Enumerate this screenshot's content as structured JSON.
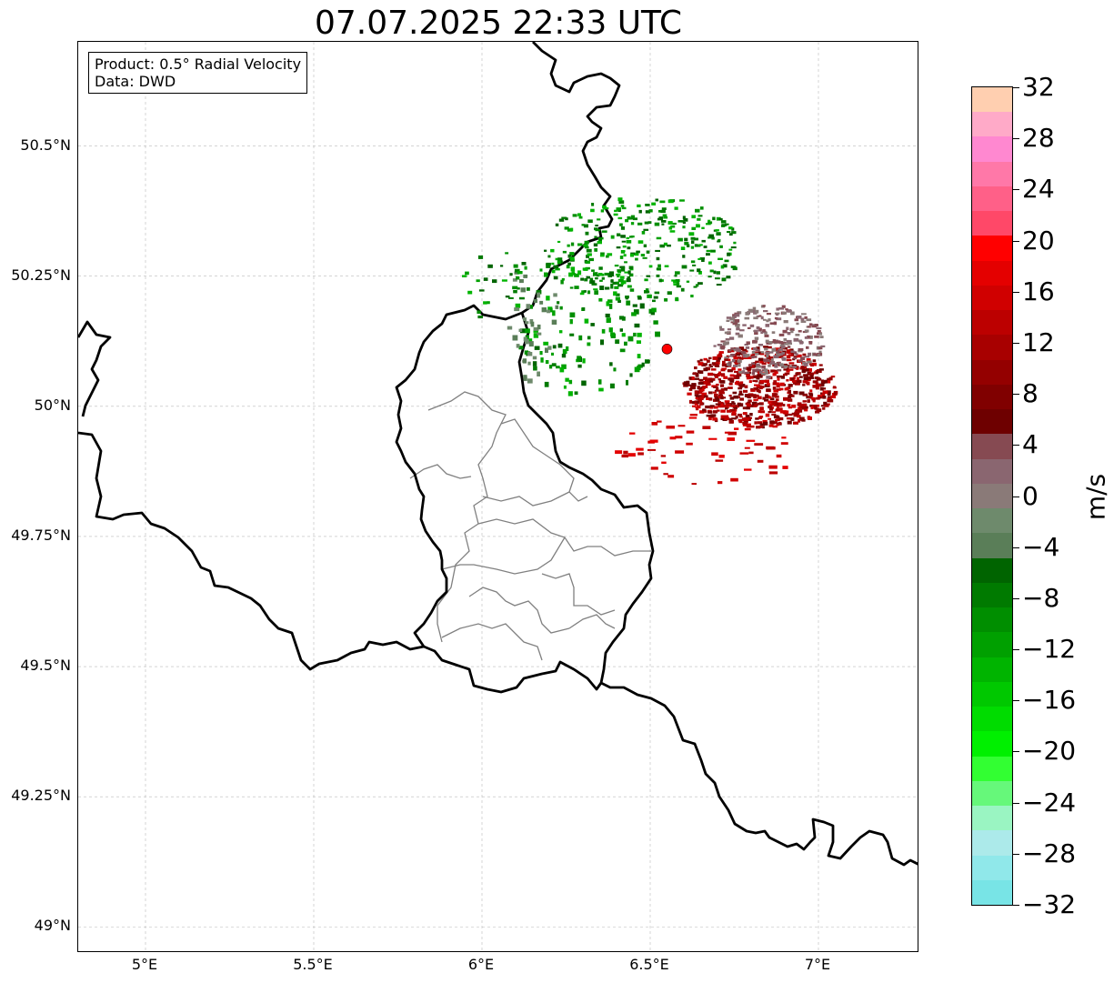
{
  "title": "07.07.2025 22:33 UTC",
  "info": {
    "product": "Product: 0.5° Radial Velocity",
    "data": "Data: DWD"
  },
  "map": {
    "lon_range": [
      4.8,
      7.3
    ],
    "lat_range": [
      48.95,
      50.7
    ],
    "x_ticks": [
      "5°E",
      "5.5°E",
      "6°E",
      "6.5°E",
      "7°E"
    ],
    "y_ticks": [
      "50.5°N",
      "50.25°N",
      "50°N",
      "49.75°N",
      "49.5°N",
      "49.25°N",
      "49°N"
    ],
    "radar_site": {
      "lon": 6.55,
      "lat": 50.11,
      "color": "#ff0000"
    },
    "border_color": "#000000",
    "district_color": "#808080"
  },
  "colorbar": {
    "unit": "m/s",
    "range": [
      -32,
      32
    ],
    "tick_labels": [
      "32",
      "28",
      "24",
      "20",
      "16",
      "12",
      "8",
      "4",
      "0",
      "−4",
      "−8",
      "−12",
      "−16",
      "−20",
      "−24",
      "−28",
      "−32"
    ],
    "colors_top_to_bottom": [
      "#ffcfb0",
      "#ffaac8",
      "#ff88d0",
      "#ff78a8",
      "#ff6088",
      "#ff4868",
      "#ff0000",
      "#e40000",
      "#d00000",
      "#bc0000",
      "#a80000",
      "#940000",
      "#800000",
      "#6e0000",
      "#864a52",
      "#8a6670",
      "#8a7a78",
      "#6e8a6c",
      "#5a7e58",
      "#006400",
      "#007a00",
      "#008e00",
      "#00a000",
      "#00b400",
      "#00c800",
      "#00dc00",
      "#00f000",
      "#32ff32",
      "#66f87a",
      "#9af5c2",
      "#aceaea",
      "#90e8ea",
      "#78e4e6"
    ]
  }
}
